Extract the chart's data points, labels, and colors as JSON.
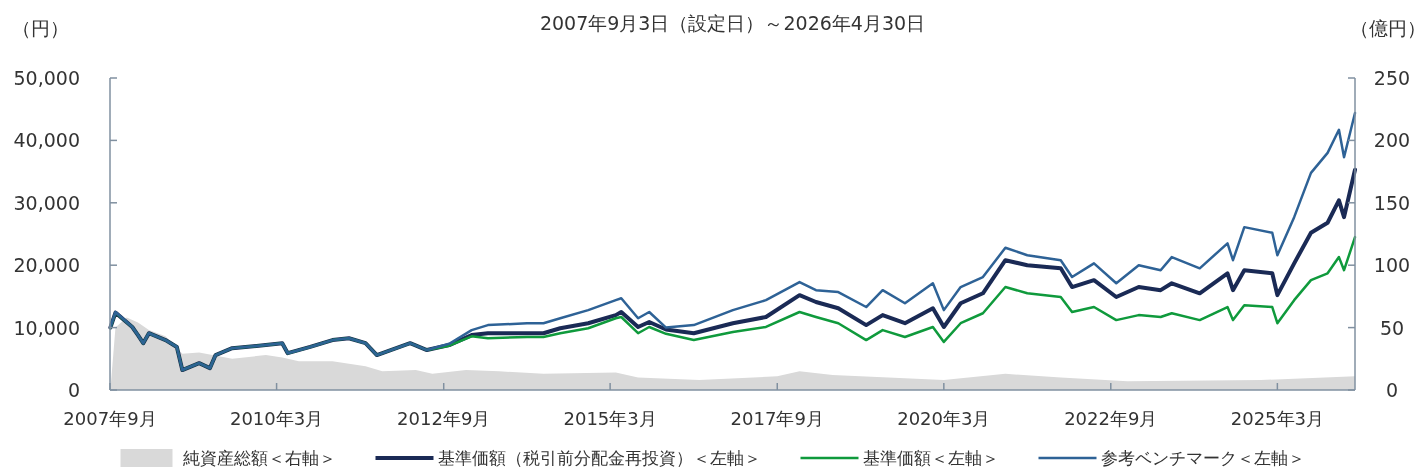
{
  "chart_data": {
    "type": "line",
    "title": "2007年9月3日（設定日）～2026年4月30日",
    "ylabel": "（円）",
    "y2label": "（億円）",
    "xlim": [
      "2007-09",
      "2026-04-30"
    ],
    "xticks": [
      {
        "value": "2007-09",
        "label": "2007年9月"
      },
      {
        "value": "2010-03",
        "label": "2010年3月"
      },
      {
        "value": "2012-09",
        "label": "2012年9月"
      },
      {
        "value": "2015-03",
        "label": "2015年3月"
      },
      {
        "value": "2017-09",
        "label": "2017年9月"
      },
      {
        "value": "2020-03",
        "label": "2020年3月"
      },
      {
        "value": "2022-09",
        "label": "2022年9月"
      },
      {
        "value": "2025-03",
        "label": "2025年3月"
      }
    ],
    "ylim": [
      0,
      50000
    ],
    "yticks": [
      0,
      {
        "value": 10000,
        "label": "10,000"
      },
      {
        "value": 20000,
        "label": "20,000"
      },
      {
        "value": 30000,
        "label": "30,000"
      },
      {
        "value": 40000,
        "label": "40,000"
      },
      {
        "value": 50000,
        "label": "50,000"
      }
    ],
    "y2lim": [
      0,
      250
    ],
    "y2ticks": [
      0,
      50,
      100,
      150,
      200,
      250
    ],
    "legend": "bottom",
    "x": [
      "2007-09-03",
      "2007-10",
      "2008-01",
      "2008-02",
      "2008-03",
      "2008-04",
      "2008-07",
      "2008-09",
      "2008-10",
      "2009-01",
      "2009-03",
      "2009-04",
      "2009-07",
      "2010-01",
      "2010-04",
      "2010-05",
      "2010-09",
      "2011-01",
      "2011-04",
      "2011-07",
      "2011-09",
      "2012-03",
      "2012-06",
      "2012-10",
      "2013-02",
      "2013-05",
      "2013-12",
      "2014-03",
      "2014-06",
      "2014-11",
      "2015-04",
      "2015-05",
      "2015-08",
      "2015-10",
      "2016-01",
      "2016-06",
      "2017-01",
      "2017-07",
      "2018-01",
      "2018-04",
      "2018-08",
      "2019-01",
      "2019-04",
      "2019-08",
      "2020-01",
      "2020-03",
      "2020-06",
      "2020-10",
      "2021-02",
      "2021-06",
      "2021-12",
      "2022-02",
      "2022-06",
      "2022-10",
      "2023-02",
      "2023-06",
      "2023-08",
      "2024-01",
      "2024-06",
      "2024-07",
      "2024-09",
      "2025-02",
      "2025-03",
      "2025-06",
      "2025-09",
      "2025-12",
      "2026-02",
      "2026-03",
      "2026-04-30"
    ],
    "series": [
      {
        "name": "純資産総額＜右軸＞",
        "type": "area",
        "axis": "y2",
        "color": "#d9d9d9",
        "x": [
          "2007-09-03",
          "2007-10",
          "2007-12",
          "2008-02",
          "2008-04",
          "2008-07",
          "2008-10",
          "2009-01",
          "2009-07",
          "2010-01",
          "2010-04",
          "2010-07",
          "2011-01",
          "2011-07",
          "2011-10",
          "2012-04",
          "2012-07",
          "2013-01",
          "2013-07",
          "2014-03",
          "2015-04",
          "2015-08",
          "2016-07",
          "2017-09",
          "2018-01",
          "2018-07",
          "2020-03",
          "2021-02",
          "2021-12",
          "2022-12",
          "2024-12",
          "2026-04-30"
        ],
        "values": [
          0,
          50,
          58,
          54,
          48,
          43,
          29,
          30,
          25,
          28,
          26,
          23,
          23,
          19,
          15,
          16,
          13,
          16,
          15,
          13,
          14,
          10,
          8,
          11,
          15,
          12,
          8,
          13,
          10,
          7,
          8,
          11
        ]
      },
      {
        "name": "基準価額（税引前分配金再投資）＜左軸＞",
        "color": "#1a2a55",
        "values": [
          10000,
          12400,
          10100,
          8800,
          7500,
          9100,
          8000,
          6900,
          3200,
          4300,
          3500,
          5600,
          6700,
          7200,
          7500,
          5900,
          6900,
          8000,
          8300,
          7500,
          5600,
          7500,
          6400,
          7200,
          8800,
          9100,
          9100,
          9100,
          9900,
          10700,
          12000,
          12500,
          10100,
          10900,
          9700,
          9100,
          10700,
          11700,
          15200,
          14100,
          13100,
          10400,
          12000,
          10700,
          13100,
          10100,
          13900,
          15500,
          20800,
          20000,
          19500,
          16500,
          17600,
          14900,
          16500,
          16000,
          17100,
          15500,
          18700,
          16000,
          19200,
          18700,
          15200,
          20300,
          25200,
          26800,
          30400,
          27700,
          35300
        ]
      },
      {
        "name": "基準価額＜左軸＞",
        "color": "#0f9a3c",
        "values": [
          10000,
          12400,
          10100,
          8800,
          7500,
          9100,
          8000,
          6900,
          3200,
          4300,
          3500,
          5600,
          6700,
          7200,
          7500,
          5900,
          6900,
          8000,
          8300,
          7500,
          5600,
          7500,
          6400,
          7100,
          8600,
          8300,
          8500,
          8500,
          9100,
          9900,
          11500,
          11700,
          9100,
          10100,
          9000,
          8000,
          9300,
          10100,
          12500,
          11700,
          10700,
          8000,
          9600,
          8500,
          10100,
          7700,
          10700,
          12300,
          16500,
          15500,
          14900,
          12500,
          13300,
          11200,
          12000,
          11700,
          12300,
          11200,
          13300,
          11200,
          13600,
          13300,
          10700,
          14400,
          17600,
          18700,
          21300,
          19200,
          24500
        ]
      },
      {
        "name": "参考ベンチマーク＜左軸＞",
        "color": "#2e6296",
        "values": [
          10100,
          12500,
          10100,
          8800,
          7500,
          9100,
          8000,
          6900,
          3200,
          4300,
          3500,
          5600,
          6700,
          7200,
          7500,
          5900,
          6900,
          8000,
          8300,
          7500,
          5600,
          7500,
          6400,
          7400,
          9600,
          10400,
          10700,
          10700,
          11500,
          12800,
          14400,
          14700,
          11500,
          12500,
          10000,
          10400,
          12800,
          14400,
          17300,
          16000,
          15700,
          13300,
          16000,
          13900,
          17100,
          12800,
          16500,
          18100,
          22800,
          21600,
          20800,
          18100,
          20300,
          17100,
          20000,
          19200,
          21300,
          19500,
          23500,
          20800,
          26100,
          25200,
          21600,
          27700,
          34800,
          38000,
          41700,
          37300,
          44400
        ]
      }
    ]
  }
}
